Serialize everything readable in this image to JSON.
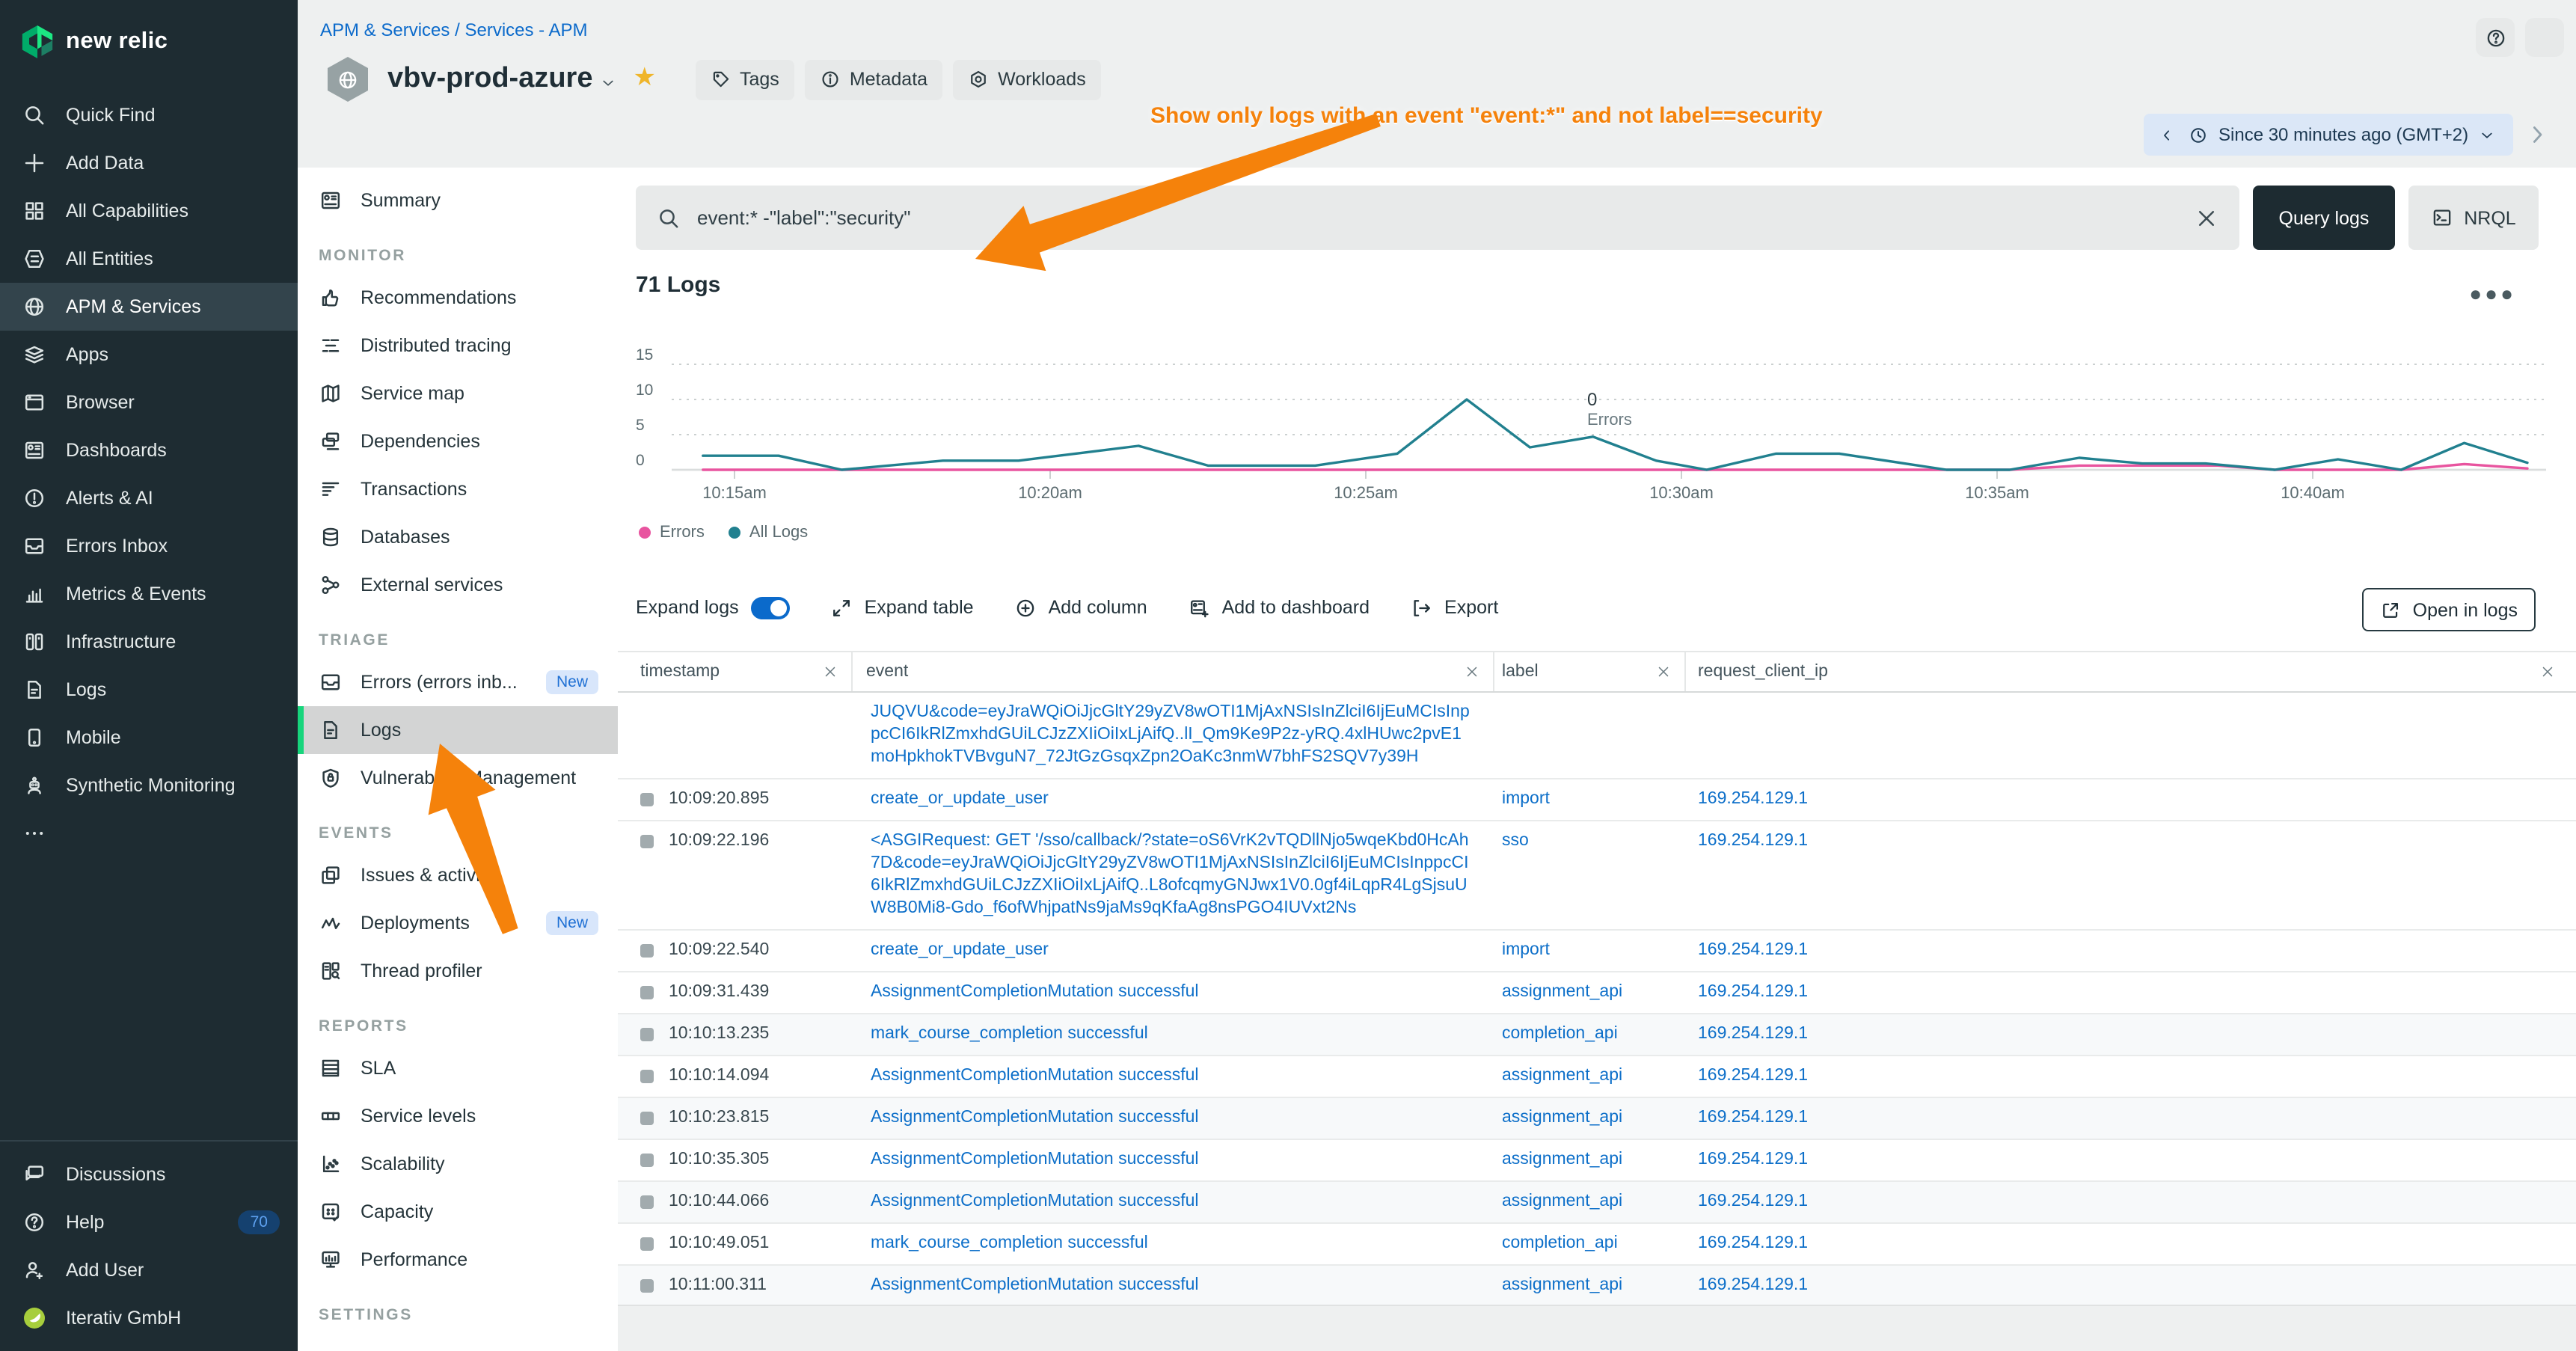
{
  "brand": {
    "logo_text": "new relic",
    "accent_green": "#1ce783"
  },
  "global_nav": {
    "items": [
      {
        "label": "Quick Find",
        "icon": "search"
      },
      {
        "label": "Add Data",
        "icon": "plus"
      },
      {
        "label": "All Capabilities",
        "icon": "grid"
      },
      {
        "label": "All Entities",
        "icon": "entities"
      },
      {
        "label": "APM & Services",
        "icon": "globe",
        "selected": true
      },
      {
        "label": "Apps",
        "icon": "layers"
      },
      {
        "label": "Browser",
        "icon": "browser"
      },
      {
        "label": "Dashboards",
        "icon": "dashboard"
      },
      {
        "label": "Alerts & AI",
        "icon": "alert"
      },
      {
        "label": "Errors Inbox",
        "icon": "inbox"
      },
      {
        "label": "Metrics & Events",
        "icon": "metrics"
      },
      {
        "label": "Infrastructure",
        "icon": "infra"
      },
      {
        "label": "Logs",
        "icon": "doc"
      },
      {
        "label": "Mobile",
        "icon": "mobile"
      },
      {
        "label": "Synthetic Monitoring",
        "icon": "robot"
      },
      {
        "label": "",
        "icon": "dots"
      }
    ],
    "footer_items": [
      {
        "label": "Discussions",
        "icon": "chat"
      },
      {
        "label": "Help",
        "icon": "help",
        "badge": "70"
      },
      {
        "label": "Add User",
        "icon": "add-user"
      },
      {
        "label": "Iterativ GmbH",
        "icon": "org-avatar"
      }
    ]
  },
  "service_nav": {
    "sections": [
      {
        "title": "",
        "items": [
          {
            "label": "Summary",
            "icon": "summary"
          }
        ]
      },
      {
        "title": "MONITOR",
        "items": [
          {
            "label": "Recommendations",
            "icon": "thumbs"
          },
          {
            "label": "Distributed tracing",
            "icon": "trace"
          },
          {
            "label": "Service map",
            "icon": "map"
          },
          {
            "label": "Dependencies",
            "icon": "copies"
          },
          {
            "label": "Transactions",
            "icon": "lines"
          },
          {
            "label": "Databases",
            "icon": "db"
          },
          {
            "label": "External services",
            "icon": "nodes"
          }
        ]
      },
      {
        "title": "TRIAGE",
        "items": [
          {
            "label": "Errors (errors inb...",
            "icon": "inbox",
            "badge": "New"
          },
          {
            "label": "Logs",
            "icon": "doc",
            "selected": true
          },
          {
            "label": "Vulnerability Management",
            "icon": "shield"
          }
        ]
      },
      {
        "title": "EVENTS",
        "items": [
          {
            "label": "Issues & activity",
            "icon": "issues"
          },
          {
            "label": "Deployments",
            "icon": "pulse",
            "badge": "New"
          },
          {
            "label": "Thread profiler",
            "icon": "profiler"
          }
        ]
      },
      {
        "title": "REPORTS",
        "items": [
          {
            "label": "SLA",
            "icon": "sla"
          },
          {
            "label": "Service levels",
            "icon": "levels"
          },
          {
            "label": "Scalability",
            "icon": "scatter"
          },
          {
            "label": "Capacity",
            "icon": "capacity"
          },
          {
            "label": "Performance",
            "icon": "monitor"
          }
        ]
      },
      {
        "title": "SETTINGS",
        "items": []
      }
    ]
  },
  "header": {
    "breadcrumb": {
      "part1": "APM & Services",
      "separator": "/",
      "part2": "Services - APM"
    },
    "entity_name": "vbv-prod-azure",
    "actions": [
      {
        "label": "Tags",
        "icon": "tag"
      },
      {
        "label": "Metadata",
        "icon": "info"
      },
      {
        "label": "Workloads",
        "icon": "workload"
      }
    ],
    "annotation": "Show only logs with an event \"event:*\" and not label==security",
    "time_picker": {
      "label": "Since 30 minutes ago (GMT+2)"
    }
  },
  "query_bar": {
    "search_value": "event:* -\"label\":\"security\"",
    "query_button": "Query logs",
    "nrql_button": "NRQL"
  },
  "logs_panel": {
    "title": "71 Logs",
    "point_annotation": {
      "value": "0",
      "label": "Errors"
    },
    "legend": [
      {
        "label": "Errors",
        "color": "#e8549f"
      },
      {
        "label": "All Logs",
        "color": "#21808f"
      }
    ],
    "toolbar": {
      "expand_logs": "Expand logs",
      "expand_table": "Expand table",
      "add_column": "Add column",
      "add_to_dashboard": "Add to dashboard",
      "export": "Export",
      "open_in_logs": "Open in logs"
    }
  },
  "chart_data": {
    "type": "line",
    "title": "71 Logs",
    "xlabel": "",
    "ylabel": "",
    "ylim": [
      0,
      15
    ],
    "y_ticks": [
      0,
      5,
      10,
      15
    ],
    "x_ticks": [
      "10:15am",
      "10:20am",
      "10:25am",
      "10:30am",
      "10:35am",
      "10:40am"
    ],
    "grid": "dotted-horizontal",
    "legend_position": "bottom-left",
    "x_unit": "minutes after 10:00am",
    "series": [
      {
        "name": "Errors",
        "color": "#e8549f",
        "x": [
          14.5,
          35.2,
          36.3,
          37.3,
          38.5,
          39.4,
          41.4,
          42.4,
          43.4
        ],
        "values": [
          0,
          0,
          0.6,
          0.6,
          0.6,
          0,
          0,
          0.8,
          0.2
        ]
      },
      {
        "name": "All Logs",
        "color": "#21808f",
        "x": [
          14.5,
          15.7,
          16.7,
          18.3,
          19.5,
          20.5,
          21.4,
          22.5,
          24.2,
          25.5,
          26.6,
          27.6,
          28.6,
          29.6,
          30.4,
          31.5,
          32.5,
          34.2,
          35.2,
          36.3,
          37.3,
          38.3,
          39.4,
          40.4,
          41.4,
          42.4,
          43.4
        ],
        "values": [
          2,
          2,
          0,
          1.3,
          1.3,
          2.4,
          3.4,
          0.6,
          0.6,
          2.3,
          10,
          3.2,
          4.7,
          1.3,
          0,
          2.3,
          2.3,
          0,
          0,
          1.7,
          0.9,
          0.9,
          0,
          1.5,
          0,
          3.8,
          1
        ]
      }
    ]
  },
  "table": {
    "columns": [
      "timestamp",
      "event",
      "label",
      "request_client_ip"
    ],
    "rows": [
      {
        "timestamp": "",
        "partial": true,
        "label": "",
        "request_client_ip": "",
        "event": "JUQVU&code=eyJraWQiOiJjcGltY29yZV8wOTI1MjAxNSIsInZlciI6IjEuMCIsInppcCI6IkRlZmxhdGUiLCJzZXIiOiIxLjAifQ..lI_Qm9Ke9P2z-yRQ.4xlHUwc2pvE1moHpkhokTVBvguN7_72JtGzGsqxZpn2OaKc3nmW7bhFS2SQV7y39H"
      },
      {
        "timestamp": "10:09:20.895",
        "event": "create_or_update_user",
        "label": "import",
        "request_client_ip": "169.254.129.1"
      },
      {
        "timestamp": "10:09:22.196",
        "label": "sso",
        "request_client_ip": "169.254.129.1",
        "event": "<ASGIRequest: GET '/sso/callback/?state=oS6VrK2vTQDllNjo5wqeKbd0HcAh7D&code=eyJraWQiOiJjcGltY29yZV8wOTI1MjAxNSIsInZlciI6IjEuMCIsInppcCI6IkRlZmxhdGUiLCJzZXIiOiIxLjAifQ..L8ofcqmyGNJwx1V0.0gf4iLqpR4LgSjsuUW8B0Mi8-Gdo_f6ofWhjpatNs9jaMs9qKfaAg8nsPGO4IUVxt2Ns"
      },
      {
        "timestamp": "10:09:22.540",
        "event": "create_or_update_user",
        "label": "import",
        "request_client_ip": "169.254.129.1"
      },
      {
        "timestamp": "10:09:31.439",
        "event": "AssignmentCompletionMutation successful",
        "label": "assignment_api",
        "request_client_ip": "169.254.129.1"
      },
      {
        "timestamp": "10:10:13.235",
        "event": "mark_course_completion successful",
        "label": "completion_api",
        "request_client_ip": "169.254.129.1"
      },
      {
        "timestamp": "10:10:14.094",
        "event": "AssignmentCompletionMutation successful",
        "label": "assignment_api",
        "request_client_ip": "169.254.129.1"
      },
      {
        "timestamp": "10:10:23.815",
        "event": "AssignmentCompletionMutation successful",
        "label": "assignment_api",
        "request_client_ip": "169.254.129.1"
      },
      {
        "timestamp": "10:10:35.305",
        "event": "AssignmentCompletionMutation successful",
        "label": "assignment_api",
        "request_client_ip": "169.254.129.1"
      },
      {
        "timestamp": "10:10:44.066",
        "event": "AssignmentCompletionMutation successful",
        "label": "assignment_api",
        "request_client_ip": "169.254.129.1"
      },
      {
        "timestamp": "10:10:49.051",
        "event": "mark_course_completion successful",
        "label": "completion_api",
        "request_client_ip": "169.254.129.1"
      },
      {
        "timestamp": "10:11:00.311",
        "event": "AssignmentCompletionMutation successful",
        "label": "assignment_api",
        "request_client_ip": "169.254.129.1"
      }
    ]
  }
}
